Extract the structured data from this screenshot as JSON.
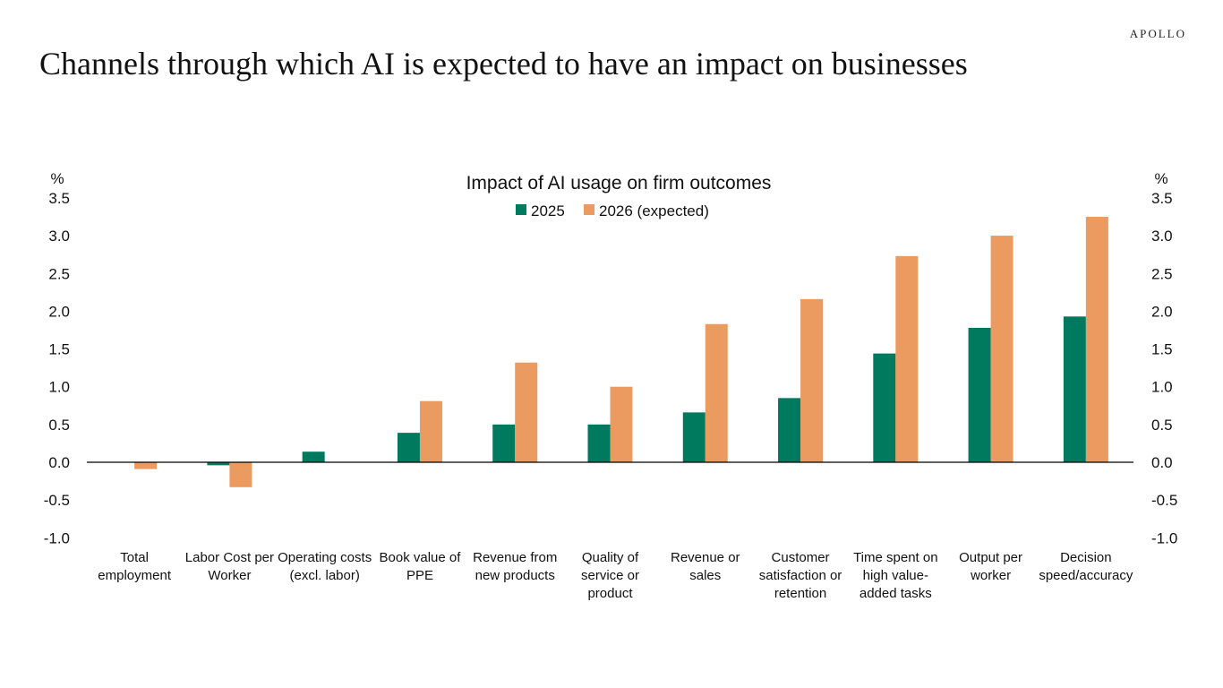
{
  "logo": "APOLLO",
  "title": "Channels through which AI is expected to have an impact on businesses",
  "chart_data": {
    "type": "bar",
    "title": "Impact of AI usage on firm outcomes",
    "ylabel_left": "%",
    "ylabel_right": "%",
    "ylim": [
      -1.0,
      3.5
    ],
    "yticks": [
      "-1.0",
      "-0.5",
      "0.0",
      "0.5",
      "1.0",
      "1.5",
      "2.0",
      "2.5",
      "3.0",
      "3.5"
    ],
    "legend_position": "top-center",
    "grid": false,
    "categories": [
      [
        "Total",
        "employment"
      ],
      [
        "Labor Cost per",
        "Worker"
      ],
      [
        "Operating costs",
        "(excl. labor)"
      ],
      [
        "Book value of",
        "PPE"
      ],
      [
        "Revenue from",
        "new products"
      ],
      [
        "Quality of",
        "service or",
        "product"
      ],
      [
        "Revenue or",
        "sales"
      ],
      [
        "Customer",
        "satisfaction or",
        "retention"
      ],
      [
        "Time spent on",
        "high value-",
        "added tasks"
      ],
      [
        "Output per",
        "worker"
      ],
      [
        "Decision",
        "speed/accuracy"
      ]
    ],
    "series": [
      {
        "name": "2025",
        "color": "#007a5e",
        "values": [
          0.0,
          -0.04,
          0.14,
          0.39,
          0.5,
          0.5,
          0.66,
          0.85,
          1.44,
          1.78,
          1.93
        ]
      },
      {
        "name": "2026 (expected)",
        "color": "#eb9b60",
        "values": [
          -0.09,
          -0.33,
          0.0,
          0.81,
          1.32,
          1.0,
          1.83,
          2.16,
          2.73,
          3.0,
          3.25
        ]
      }
    ]
  }
}
